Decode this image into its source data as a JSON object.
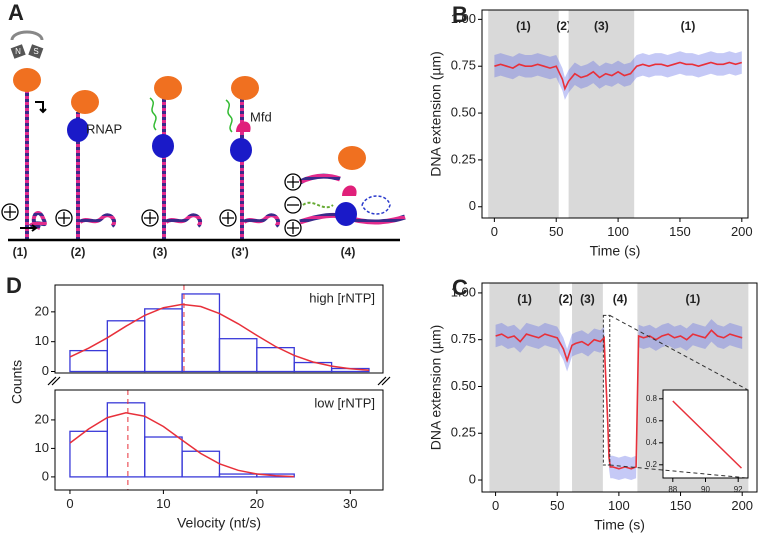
{
  "diagram": {
    "label": "A",
    "stages": [
      "(1)",
      "(2)",
      "(3)",
      "(3')",
      "(4)"
    ],
    "proteins": [
      "RNAP",
      "Mfd"
    ],
    "magnet_poles": [
      "N",
      "S"
    ]
  },
  "chart_data": [
    {
      "label": "B",
      "type": "trace",
      "xlabel": "Time (s)",
      "ylabel": "DNA extension (µm)",
      "xlim": [
        -10,
        205
      ],
      "ylim": [
        -0.06,
        1.05
      ],
      "xticks": [
        0,
        50,
        100,
        150,
        200
      ],
      "yticks": [
        0,
        0.25,
        {
          "value": 0.5,
          "label": "0.50"
        },
        0.75,
        {
          "value": 1,
          "label": "1.00"
        }
      ],
      "phases": [
        {
          "label": "(1)",
          "start": -5,
          "end": 52,
          "shaded": true
        },
        {
          "label": "(2)",
          "start": 52,
          "end": 60,
          "shaded": false
        },
        {
          "label": "(3)",
          "start": 60,
          "end": 113,
          "shaded": true
        },
        {
          "label": "(1)",
          "start": 113,
          "end": 200,
          "shaded": false
        }
      ],
      "color": "#e8303a",
      "noise_color": "#5a64e6",
      "spread": 0.06,
      "x": [
        0,
        5,
        10,
        15,
        20,
        25,
        30,
        35,
        40,
        45,
        50,
        55,
        57,
        60,
        65,
        70,
        75,
        80,
        85,
        90,
        95,
        100,
        105,
        110,
        115,
        120,
        125,
        130,
        135,
        140,
        145,
        150,
        155,
        160,
        165,
        170,
        175,
        180,
        185,
        190,
        195,
        200
      ],
      "values": [
        0.75,
        0.76,
        0.75,
        0.74,
        0.76,
        0.75,
        0.75,
        0.76,
        0.75,
        0.74,
        0.75,
        0.68,
        0.63,
        0.67,
        0.71,
        0.69,
        0.7,
        0.72,
        0.69,
        0.71,
        0.7,
        0.72,
        0.7,
        0.71,
        0.75,
        0.76,
        0.75,
        0.76,
        0.76,
        0.75,
        0.76,
        0.77,
        0.76,
        0.76,
        0.75,
        0.76,
        0.77,
        0.76,
        0.76,
        0.77,
        0.76,
        0.77
      ]
    },
    {
      "label": "C",
      "type": "trace",
      "xlabel": "Time (s)",
      "ylabel": "DNA extension (µm)",
      "xlim": [
        -11,
        212
      ],
      "ylim": [
        -0.064,
        1.053
      ],
      "xticks": [
        0,
        50,
        100,
        150,
        200
      ],
      "yticks": [
        0,
        0.25,
        {
          "value": 0.5,
          "label": "0.50"
        },
        0.75,
        {
          "value": 1,
          "label": "1.00"
        }
      ],
      "phases": [
        {
          "label": "(1)",
          "start": -5,
          "end": 52,
          "shaded": true
        },
        {
          "label": "(2)",
          "start": 52,
          "end": 62,
          "shaded": false
        },
        {
          "label": "(3)",
          "start": 62,
          "end": 87,
          "shaded": true
        },
        {
          "label": "(4)",
          "start": 87,
          "end": 115,
          "shaded": false
        },
        {
          "label": "(1)",
          "start": 115,
          "end": 205,
          "shaded": true
        }
      ],
      "color": "#e8303a",
      "noise_color": "#5a64e6",
      "spread": 0.06,
      "x": [
        0,
        5,
        10,
        15,
        20,
        25,
        30,
        35,
        40,
        45,
        50,
        55,
        58,
        62,
        65,
        70,
        75,
        80,
        85,
        88,
        89,
        90,
        91,
        92,
        93,
        95,
        100,
        105,
        110,
        114,
        116,
        120,
        125,
        130,
        135,
        140,
        145,
        150,
        155,
        160,
        165,
        170,
        175,
        180,
        185,
        190,
        195,
        200
      ],
      "values": [
        0.77,
        0.78,
        0.76,
        0.77,
        0.74,
        0.78,
        0.77,
        0.76,
        0.78,
        0.77,
        0.76,
        0.7,
        0.64,
        0.72,
        0.73,
        0.74,
        0.72,
        0.75,
        0.74,
        0.76,
        0.6,
        0.45,
        0.3,
        0.12,
        0.07,
        0.07,
        0.06,
        0.07,
        0.06,
        0.07,
        0.77,
        0.76,
        0.77,
        0.75,
        0.77,
        0.78,
        0.76,
        0.77,
        0.75,
        0.78,
        0.77,
        0.76,
        0.8,
        0.77,
        0.76,
        0.78,
        0.77,
        0.76
      ],
      "inset": {
        "type": "line",
        "xlim": [
          87.4,
          92.6
        ],
        "ylim": [
          0.08,
          0.88
        ],
        "xticks": [
          88,
          90,
          92
        ],
        "yticks": [
          0.2,
          0.4,
          0.6,
          0.8
        ],
        "color": "#e8303a",
        "x": [
          88,
          92.2
        ],
        "values": [
          0.78,
          0.17
        ]
      }
    },
    {
      "label": "D",
      "type": "histogram",
      "ylabel": "Counts",
      "annotation": "high [rNTP]",
      "xlim": [
        -1.6,
        33.5
      ],
      "ylim": [
        -0.5,
        29
      ],
      "yticks": [
        0,
        10,
        20
      ],
      "color": "#3a3ad8",
      "bins": [
        0,
        4,
        8,
        12,
        16,
        20,
        24,
        28,
        32
      ],
      "counts": [
        7,
        17,
        21,
        26,
        11,
        8,
        3,
        1
      ],
      "mean": 12.2,
      "fit": {
        "color": "#e8303a",
        "x": [
          0,
          2,
          4,
          6,
          8,
          10,
          12,
          14,
          16,
          18,
          20,
          22,
          24,
          26,
          28,
          30,
          32
        ],
        "values": [
          4.9,
          7.8,
          11.3,
          15.2,
          18.8,
          21.4,
          22.5,
          21.8,
          19.4,
          16.0,
          12.1,
          8.4,
          5.4,
          3.2,
          1.8,
          0.9,
          0.4
        ]
      }
    },
    {
      "type": "histogram",
      "xlabel": "Velocity (nt/s)",
      "annotation": "low [rNTP]",
      "xlim": [
        -1.6,
        33.5
      ],
      "ylim": [
        -4.6,
        30.5
      ],
      "xticks": [
        0,
        10,
        20,
        30
      ],
      "yticks": [
        0,
        10,
        20
      ],
      "color": "#3a3ad8",
      "bins": [
        0,
        4,
        8,
        12,
        16,
        20,
        24
      ],
      "counts": [
        16,
        26,
        14,
        9,
        1,
        1
      ],
      "mean": 6.2,
      "fit": {
        "color": "#e8303a",
        "x": [
          0,
          2,
          4,
          6,
          8,
          10,
          12,
          14,
          16,
          18,
          20,
          22,
          24
        ],
        "values": [
          11.9,
          16.8,
          20.8,
          22.5,
          21.3,
          17.7,
          12.9,
          8.2,
          4.6,
          2.3,
          1.0,
          0.4,
          0.1
        ]
      }
    }
  ]
}
